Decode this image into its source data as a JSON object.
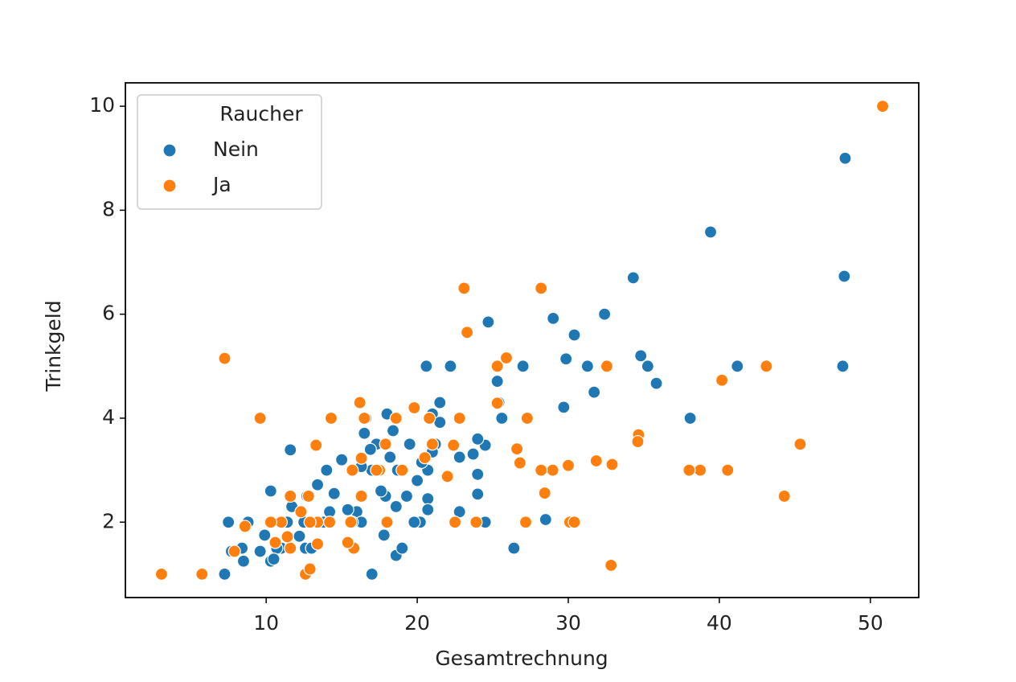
{
  "chart_data": {
    "type": "scatter",
    "x_label": "Gesamtrechnung",
    "y_label": "Trinkgeld",
    "legend_title": "Raucher",
    "legend": "upper left",
    "xlim": [
      0.68,
      53.2
    ],
    "ylim": [
      0.55,
      10.45
    ],
    "xticks": [
      10,
      20,
      30,
      40,
      50
    ],
    "yticks": [
      2,
      4,
      6,
      8,
      10
    ],
    "series": [
      {
        "name": "Nein",
        "color": "#1f77b4",
        "x": [
          7.25,
          7.5,
          48.27,
          48.17,
          48.33,
          39.42,
          34.3,
          32.4,
          24.7,
          29.0,
          30.4,
          29.85,
          31.27,
          31.71,
          34.8,
          35.26,
          35.83,
          38.07,
          41.19,
          29.7,
          27.0,
          20.6,
          22.2,
          25.3,
          25.4,
          25.6,
          24.5,
          24.0,
          23.7,
          24.0,
          24.0,
          24.5,
          28.5,
          26.4,
          21.5,
          21.0,
          21.5,
          21.2,
          20.7,
          20.7,
          20.7,
          20.2,
          19.8,
          19.5,
          20.3,
          20.0,
          18.0,
          18.4,
          18.2,
          18.7,
          17.9,
          18.6,
          17.6,
          17.8,
          18.6,
          19.0,
          17.0,
          17.3,
          17.0,
          16.5,
          16.3,
          16.0,
          16.3,
          15.4,
          15.0,
          14.5,
          14.0,
          14.2,
          13.8,
          13.4,
          12.7,
          12.5,
          12.2,
          12.6,
          11.6,
          11.7,
          11.4,
          11.0,
          10.3,
          10.7,
          10.3,
          9.9,
          9.6,
          8.8,
          8.5,
          8.4,
          7.7,
          10.5,
          13.0,
          15.7,
          22.8,
          21.0,
          22.8,
          19.3,
          16.9
        ],
        "values": [
          1.0,
          2.0,
          6.73,
          5.0,
          9.0,
          7.58,
          6.7,
          6.0,
          5.85,
          5.92,
          5.6,
          5.14,
          5.0,
          4.5,
          5.2,
          5.0,
          4.67,
          4.0,
          5.0,
          4.21,
          5.0,
          5.0,
          5.0,
          4.71,
          4.3,
          4.0,
          3.48,
          3.6,
          3.31,
          2.92,
          2.54,
          2.0,
          2.05,
          1.5,
          4.3,
          4.08,
          3.92,
          3.5,
          3.0,
          2.45,
          2.24,
          2.0,
          2.0,
          3.5,
          3.15,
          2.8,
          4.08,
          3.76,
          3.25,
          3.0,
          2.5,
          2.3,
          2.6,
          1.75,
          1.36,
          1.5,
          1.0,
          3.5,
          3.0,
          3.71,
          3.07,
          2.2,
          2.0,
          2.24,
          3.2,
          2.55,
          3.0,
          2.2,
          2.0,
          2.72,
          2.5,
          2.0,
          1.73,
          1.5,
          3.39,
          2.3,
          2.0,
          1.5,
          2.6,
          1.5,
          1.25,
          1.75,
          1.44,
          2.0,
          1.25,
          1.5,
          1.44,
          1.29,
          1.5,
          2.0,
          2.2,
          3.35,
          3.25,
          2.5,
          3.4
        ]
      },
      {
        "name": "Ja",
        "color": "#ff7f0e",
        "x": [
          50.81,
          40.17,
          43.11,
          45.35,
          44.3,
          40.55,
          38.73,
          38.0,
          34.65,
          34.6,
          32.55,
          32.83,
          32.9,
          31.85,
          30.1,
          30.4,
          30.0,
          28.97,
          28.2,
          28.44,
          27.18,
          27.28,
          26.6,
          26.8,
          28.2,
          23.1,
          23.3,
          25.9,
          25.3,
          25.3,
          22.8,
          22.4,
          22.0,
          22.5,
          23.9,
          21.0,
          20.5,
          20.8,
          19.8,
          19.0,
          18.6,
          17.9,
          17.5,
          18.0,
          16.6,
          16.2,
          16.3,
          15.7,
          15.6,
          16.3,
          15.8,
          15.4,
          14.3,
          14.2,
          13.3,
          13.4,
          13.4,
          12.9,
          12.8,
          12.3,
          12.6,
          12.9,
          11.6,
          11.6,
          11.4,
          11.0,
          10.3,
          10.6,
          9.6,
          8.6,
          7.9,
          7.25,
          5.75,
          3.07,
          16.5,
          17.3
        ],
        "values": [
          10.0,
          4.73,
          5.0,
          3.5,
          2.5,
          3.0,
          3.0,
          3.0,
          3.68,
          3.55,
          5.0,
          1.17,
          3.11,
          3.18,
          2.0,
          2.0,
          3.09,
          3.0,
          3.0,
          2.56,
          2.0,
          4.0,
          3.41,
          3.14,
          6.5,
          6.5,
          5.65,
          5.16,
          5.0,
          4.29,
          4.0,
          3.48,
          2.88,
          2.0,
          2.0,
          3.5,
          3.24,
          4.0,
          4.2,
          3.0,
          4.0,
          3.5,
          3.0,
          2.0,
          4.0,
          4.3,
          3.23,
          3.0,
          2.0,
          2.5,
          1.5,
          1.61,
          4.0,
          2.0,
          3.48,
          2.0,
          1.58,
          2.0,
          2.5,
          2.2,
          1.0,
          1.1,
          2.5,
          1.5,
          1.72,
          2.0,
          2.0,
          1.61,
          4.0,
          1.92,
          1.44,
          5.15,
          1.0,
          1.0,
          4.0,
          3.0
        ]
      }
    ]
  }
}
